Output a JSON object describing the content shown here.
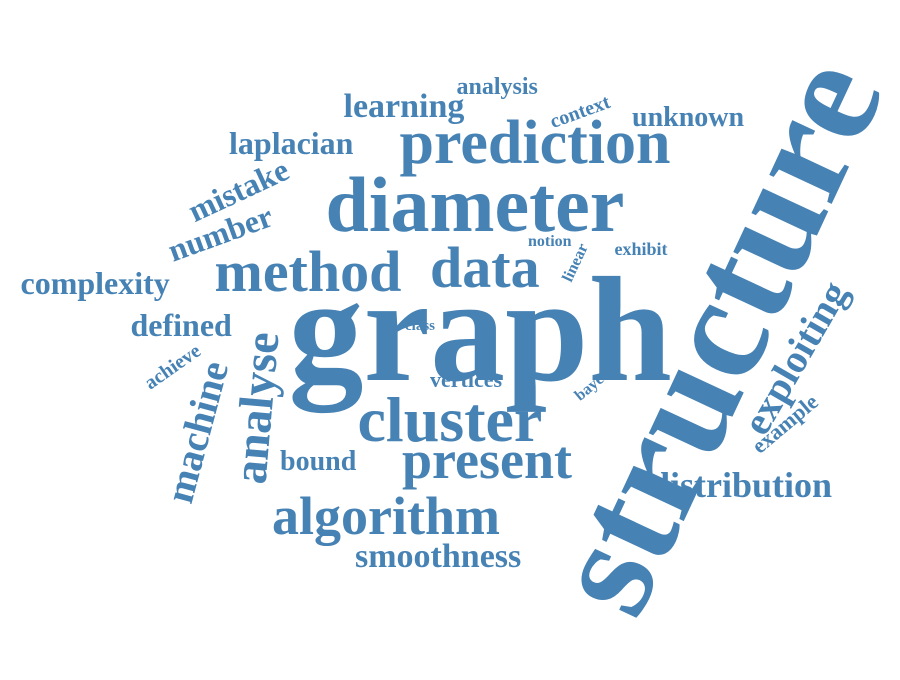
{
  "color": "#4682b4",
  "words": [
    "structure",
    "graph",
    "diameter",
    "prediction",
    "method",
    "data",
    "cluster",
    "present",
    "algorithm",
    "analyse",
    "machine",
    "exploiting",
    "distribution",
    "smoothness",
    "learning",
    "number",
    "mistake",
    "laplacian",
    "complexity",
    "defined",
    "unknown",
    "analysis",
    "context",
    "bound",
    "vertices",
    "example",
    "achieve",
    "exhibit",
    "notion",
    "linear",
    "class",
    "bayes"
  ]
}
